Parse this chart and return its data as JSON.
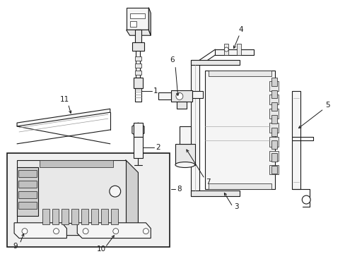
{
  "bg_color": "#ffffff",
  "lc": "#1a1a1a",
  "lc_light": "#555555",
  "fill_light": "#f5f5f5",
  "fill_mid": "#e8e8e8",
  "fill_dark": "#d0d0d0",
  "fill_inset": "#ebebeb",
  "fig_width": 4.89,
  "fig_height": 3.6,
  "dpi": 100
}
